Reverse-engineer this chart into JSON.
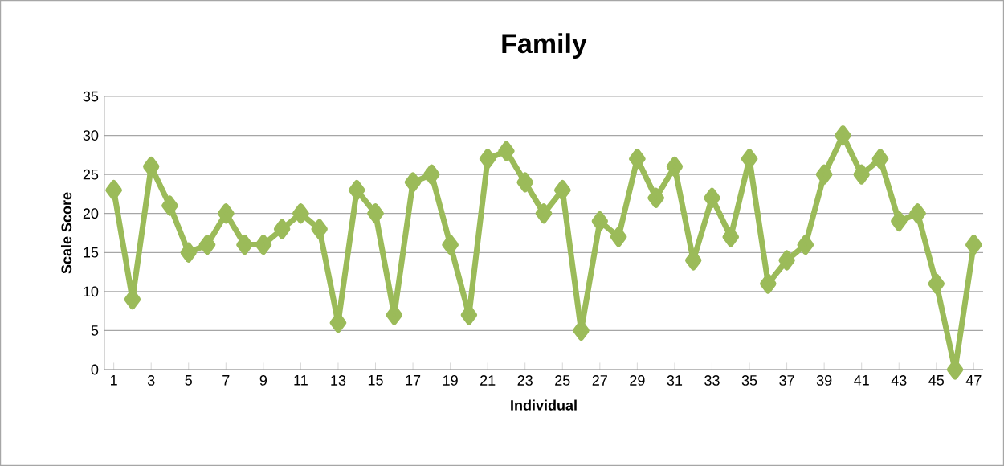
{
  "chart_data": {
    "type": "line",
    "title": "Family",
    "xlabel": "Individual",
    "ylabel": "Scale Score",
    "x": [
      1,
      2,
      3,
      4,
      5,
      6,
      7,
      8,
      9,
      10,
      11,
      12,
      13,
      14,
      15,
      16,
      17,
      18,
      19,
      20,
      21,
      22,
      23,
      24,
      25,
      26,
      27,
      28,
      29,
      30,
      31,
      32,
      33,
      34,
      35,
      36,
      37,
      38,
      39,
      40,
      41,
      42,
      43,
      44,
      45,
      46,
      47
    ],
    "series": [
      {
        "color": "#9bbb59",
        "values": [
          23,
          9,
          26,
          21,
          15,
          16,
          20,
          16,
          16,
          18,
          20,
          18,
          6,
          23,
          20,
          7,
          24,
          25,
          16,
          7,
          27,
          28,
          24,
          20,
          23,
          5,
          19,
          17,
          27,
          22,
          26,
          14,
          22,
          17,
          27,
          11,
          14,
          16,
          25,
          30,
          25,
          27,
          19,
          20,
          11,
          0,
          16
        ]
      }
    ],
    "xlim": [
      0.5,
      47.5
    ],
    "xticks": [
      1,
      3,
      5,
      7,
      9,
      11,
      13,
      15,
      17,
      19,
      21,
      23,
      25,
      27,
      29,
      31,
      33,
      35,
      37,
      39,
      41,
      43,
      45,
      47
    ],
    "ylim": [
      0,
      35
    ],
    "yticks": [
      0,
      5,
      10,
      15,
      20,
      25,
      30,
      35
    ],
    "grid": "y",
    "legend": false,
    "marker": "diamond",
    "line_style": "solid"
  }
}
